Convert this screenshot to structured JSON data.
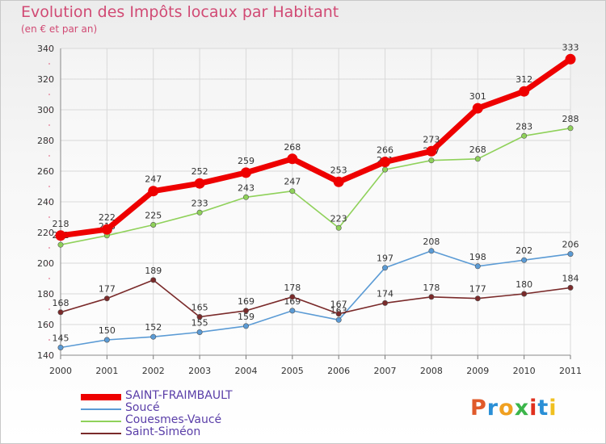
{
  "title": "Evolution des Impôts locaux par Habitant",
  "subtitle": "(en € et par an)",
  "logo": "Proxiti",
  "logo_colors": [
    "#e05a2a",
    "#2a8fd6",
    "#f0a020",
    "#3bb54a",
    "#e0301e",
    "#2a8fd6",
    "#f0c020"
  ],
  "chart_data": {
    "type": "line",
    "x": [
      "2000",
      "2001",
      "2002",
      "2003",
      "2004",
      "2005",
      "2006",
      "2007",
      "2008",
      "2009",
      "2010",
      "2011"
    ],
    "ylim": [
      140,
      340
    ],
    "yticks": [
      140,
      160,
      180,
      200,
      220,
      240,
      260,
      280,
      300,
      320,
      340
    ],
    "grid": true,
    "legend_placement": "bottom-left",
    "series": [
      {
        "name": "SAINT-FRAIMBAULT",
        "color": "#ee0000",
        "values": [
          218,
          222,
          247,
          252,
          259,
          268,
          253,
          266,
          273,
          301,
          312,
          333
        ]
      },
      {
        "name": "Soucé",
        "color": "#5b9bd5",
        "values": [
          145,
          150,
          152,
          155,
          159,
          169,
          163,
          197,
          208,
          198,
          202,
          206
        ]
      },
      {
        "name": "Couesmes-Vaucé",
        "color": "#8fd15a",
        "values": [
          212,
          218,
          225,
          233,
          243,
          247,
          223,
          261,
          267,
          268,
          283,
          288
        ]
      },
      {
        "name": "Saint-Siméon",
        "color": "#7a2a2a",
        "values": [
          168,
          177,
          189,
          165,
          169,
          178,
          167,
          174,
          178,
          177,
          180,
          184
        ]
      }
    ]
  }
}
